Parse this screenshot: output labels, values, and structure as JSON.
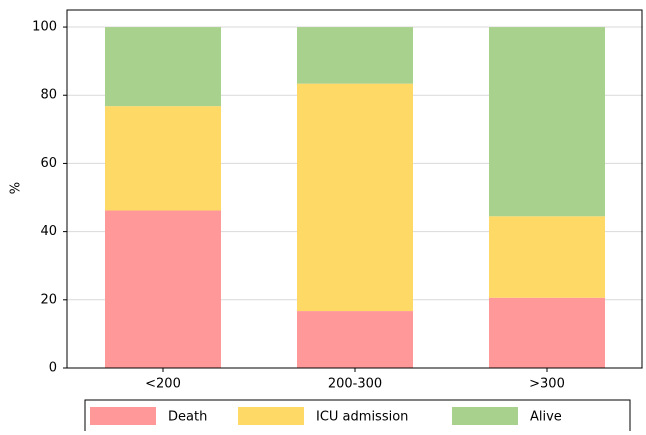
{
  "chart_data": {
    "type": "bar",
    "stacked": true,
    "ylabel": "%",
    "categories": [
      "<200",
      "200-300",
      ">300"
    ],
    "series": [
      {
        "name": "Death",
        "color": "#ff9999",
        "values": [
          46.2,
          16.7,
          20.6
        ]
      },
      {
        "name": "ICU admission",
        "color": "#ffd966",
        "values": [
          30.6,
          66.7,
          23.9
        ]
      },
      {
        "name": "Alive",
        "color": "#a9d18e",
        "values": [
          23.2,
          16.6,
          55.5
        ]
      }
    ],
    "ylim": [
      0,
      105
    ],
    "yticks": [
      0,
      20,
      40,
      60,
      80,
      100
    ],
    "grid": true,
    "legend": "bottom"
  }
}
